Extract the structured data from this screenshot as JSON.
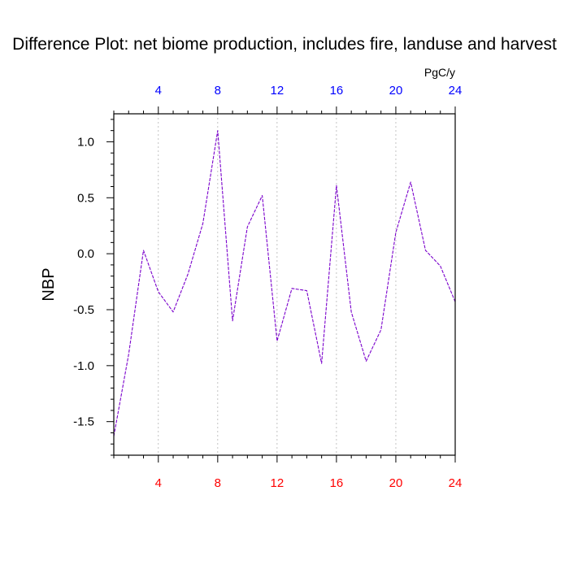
{
  "chart_data": {
    "type": "line",
    "title": "Difference Plot: net biome production, includes fire, landuse and harvest",
    "units": "PgC/y",
    "ylabel": "NBP",
    "xlabel": "",
    "xlim": [
      1,
      24
    ],
    "ylim": [
      -1.8,
      1.25
    ],
    "xticks": [
      4,
      8,
      12,
      16,
      20,
      24
    ],
    "yticks": [
      -1.5,
      -1.0,
      -0.5,
      0.0,
      0.5,
      1.0
    ],
    "ytick_labels": [
      "-1.5",
      "-1.0",
      "-0.5",
      "0.0",
      "0.5",
      "1.0"
    ],
    "top_tick_color": "#0000ff",
    "bottom_tick_color": "#ff0000",
    "line_color": "#7a00cc",
    "grid": "vertical-dashed",
    "series": [
      {
        "x": [
          1,
          2,
          3,
          4,
          5,
          6,
          7,
          8,
          9,
          10,
          11,
          12,
          13,
          14,
          15,
          16,
          17,
          18,
          19,
          20,
          21,
          22,
          23,
          24
        ],
        "values": [
          -1.63,
          -0.9,
          0.03,
          -0.34,
          -0.52,
          -0.18,
          0.27,
          1.1,
          -0.6,
          0.24,
          0.52,
          -0.78,
          -0.31,
          -0.33,
          -0.98,
          0.61,
          -0.52,
          -0.96,
          -0.68,
          0.19,
          0.64,
          0.03,
          -0.11,
          -0.43
        ]
      }
    ]
  }
}
